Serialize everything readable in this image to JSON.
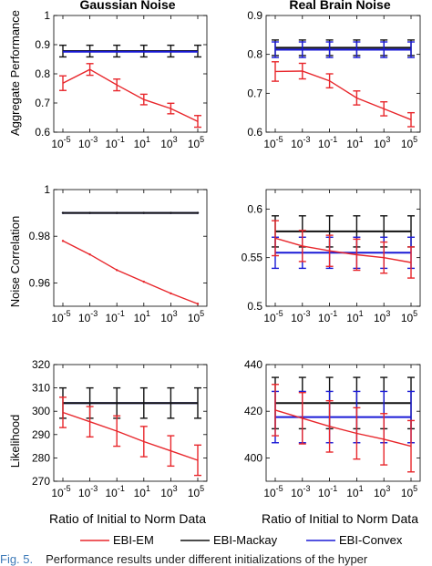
{
  "figure": {
    "col_titles": [
      "Gaussian Noise",
      "Real Brain Noise"
    ],
    "row_ylabels": [
      "Aggregate Performance",
      "Noise Correlation",
      "Likelihood"
    ],
    "xlabel": "Ratio of Initial to Norm Data",
    "x_tick_base": "10",
    "x_tick_exponents": [
      "-5",
      "-3",
      "-1",
      "1",
      "3",
      "5"
    ],
    "legend": [
      {
        "key": "em",
        "label": "EBI-EM",
        "color": "#e8262b"
      },
      {
        "key": "mackay",
        "label": "EBI-Mackay",
        "color": "#111111"
      },
      {
        "key": "convex",
        "label": "EBI-Convex",
        "color": "#1a1ad6"
      }
    ]
  },
  "caption": {
    "label": "Fig. 5.",
    "text": "Performance results under different initializations of the hyper"
  },
  "chart_data": [
    {
      "type": "line",
      "panel": "gaussian-aggregate",
      "x": [
        1e-05,
        0.001,
        0.1,
        10,
        1000,
        100000
      ],
      "xscale": "log",
      "ylim": [
        0.6,
        1.0
      ],
      "yticks": [
        "0.6",
        "0.7",
        "0.8",
        "0.9",
        "1"
      ],
      "series": [
        {
          "key": "mackay",
          "values": [
            0.878,
            0.878,
            0.878,
            0.878,
            0.878,
            0.878
          ],
          "err": [
            0.02,
            0.02,
            0.02,
            0.02,
            0.02,
            0.02
          ]
        },
        {
          "key": "convex",
          "values": [
            0.876,
            0.876,
            0.876,
            0.876,
            0.876,
            0.876
          ],
          "err": [
            0,
            0,
            0,
            0,
            0,
            0
          ]
        },
        {
          "key": "em",
          "values": [
            0.768,
            0.815,
            0.762,
            0.712,
            0.681,
            0.637
          ],
          "err": [
            0.025,
            0.02,
            0.02,
            0.018,
            0.018,
            0.02
          ]
        }
      ]
    },
    {
      "type": "line",
      "panel": "brain-aggregate",
      "x": [
        1e-05,
        0.001,
        0.1,
        10,
        1000,
        100000
      ],
      "xscale": "log",
      "ylim": [
        0.6,
        0.9
      ],
      "yticks": [
        "0.6",
        "0.7",
        "0.8",
        "0.9"
      ],
      "series": [
        {
          "key": "mackay",
          "values": [
            0.817,
            0.817,
            0.817,
            0.817,
            0.817,
            0.817
          ],
          "err": [
            0.02,
            0.02,
            0.02,
            0.02,
            0.02,
            0.02
          ]
        },
        {
          "key": "convex",
          "values": [
            0.812,
            0.812,
            0.812,
            0.812,
            0.812,
            0.812
          ],
          "err": [
            0.02,
            0.02,
            0.02,
            0.02,
            0.02,
            0.02
          ]
        },
        {
          "key": "em",
          "values": [
            0.756,
            0.757,
            0.732,
            0.688,
            0.66,
            0.632
          ],
          "err": [
            0.025,
            0.02,
            0.018,
            0.018,
            0.018,
            0.018
          ]
        }
      ]
    },
    {
      "type": "line",
      "panel": "gaussian-noise-corr",
      "x": [
        1e-05,
        0.001,
        0.1,
        10,
        1000,
        100000
      ],
      "xscale": "log",
      "ylim": [
        0.95,
        1.0
      ],
      "yticks": [
        "0.96",
        "0.98",
        "1"
      ],
      "series": [
        {
          "key": "convex",
          "values": [
            0.99,
            0.99,
            0.99,
            0.99,
            0.99,
            0.99
          ],
          "err": [
            0,
            0,
            0,
            0,
            0,
            0
          ]
        },
        {
          "key": "mackay",
          "values": [
            0.99,
            0.99,
            0.99,
            0.99,
            0.99,
            0.99
          ],
          "err": [
            0,
            0,
            0,
            0,
            0,
            0
          ]
        },
        {
          "key": "em",
          "values": [
            0.978,
            0.9722,
            0.9655,
            0.9605,
            0.9555,
            0.951
          ],
          "err": [
            0,
            0,
            0,
            0,
            0,
            0
          ]
        }
      ]
    },
    {
      "type": "line",
      "panel": "brain-noise-corr",
      "x": [
        1e-05,
        0.001,
        0.1,
        10,
        1000,
        100000
      ],
      "xscale": "log",
      "ylim": [
        0.5,
        0.62
      ],
      "yticks": [
        "0.5",
        "0.55",
        "0.6"
      ],
      "series": [
        {
          "key": "mackay",
          "values": [
            0.577,
            0.577,
            0.577,
            0.577,
            0.577,
            0.577
          ],
          "err": [
            0.016,
            0.016,
            0.016,
            0.016,
            0.016,
            0.016
          ]
        },
        {
          "key": "convex",
          "values": [
            0.555,
            0.555,
            0.555,
            0.555,
            0.555,
            0.555
          ],
          "err": [
            0.016,
            0.016,
            0.016,
            0.016,
            0.016,
            0.016
          ]
        },
        {
          "key": "em",
          "values": [
            0.57,
            0.562,
            0.557,
            0.553,
            0.55,
            0.545
          ],
          "err": [
            0.018,
            0.016,
            0.016,
            0.016,
            0.016,
            0.016
          ]
        }
      ]
    },
    {
      "type": "line",
      "panel": "gaussian-likelihood",
      "x": [
        1e-05,
        0.001,
        0.1,
        10,
        1000,
        100000
      ],
      "xscale": "log",
      "ylim": [
        270,
        320
      ],
      "yticks": [
        "270",
        "280",
        "290",
        "300",
        "310",
        "320"
      ],
      "series": [
        {
          "key": "convex",
          "values": [
            303.5,
            303.5,
            303.5,
            303.5,
            303.5,
            303.5
          ],
          "err": [
            0,
            0,
            0,
            0,
            0,
            0
          ]
        },
        {
          "key": "mackay",
          "values": [
            303.5,
            303.5,
            303.5,
            303.5,
            303.5,
            303.5
          ],
          "err": [
            6.5,
            6.5,
            6.5,
            6.5,
            6.5,
            6.5
          ]
        },
        {
          "key": "em",
          "values": [
            299.5,
            295.5,
            291.5,
            287,
            283,
            279
          ],
          "err": [
            6.5,
            6.5,
            6.5,
            6.5,
            6.5,
            6.5
          ]
        }
      ]
    },
    {
      "type": "line",
      "panel": "brain-likelihood",
      "x": [
        1e-05,
        0.001,
        0.1,
        10,
        1000,
        100000
      ],
      "xscale": "log",
      "ylim": [
        390,
        440
      ],
      "yticks": [
        "400",
        "420",
        "440"
      ],
      "series": [
        {
          "key": "mackay",
          "values": [
            423.5,
            423.5,
            423.5,
            423.5,
            423.5,
            423.5
          ],
          "err": [
            11,
            11,
            11,
            11,
            11,
            11
          ]
        },
        {
          "key": "convex",
          "values": [
            417.5,
            417.5,
            417.5,
            417.5,
            417.5,
            417.5
          ],
          "err": [
            11,
            11,
            11,
            11,
            11,
            11
          ]
        },
        {
          "key": "em",
          "values": [
            420.5,
            417,
            413.5,
            410.5,
            408,
            405
          ],
          "err": [
            11,
            11,
            11,
            11,
            11,
            11
          ]
        }
      ]
    }
  ]
}
